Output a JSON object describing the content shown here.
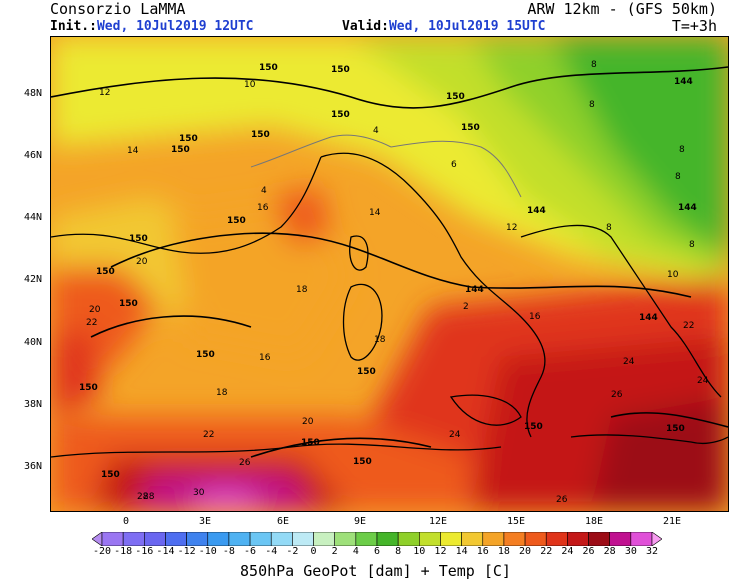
{
  "header": {
    "org": "Consorzio LaMMA",
    "model": "ARW 12km - (GFS 50km)",
    "init_label": "Init.:",
    "init_value": "Wed, 10Jul2019 12UTC",
    "valid_label": "Valid:",
    "valid_value": "Wed, 10Jul2019 15UTC",
    "lead_time": "T=+3h"
  },
  "axes": {
    "latitudes": [
      "48N",
      "46N",
      "44N",
      "42N",
      "40N",
      "38N",
      "36N"
    ],
    "longitudes": [
      "0",
      "3E",
      "6E",
      "9E",
      "12E",
      "15E",
      "18E",
      "21E"
    ]
  },
  "colorbar": {
    "labels": [
      "-20",
      "-18",
      "-16",
      "-14",
      "-12",
      "-10",
      "-8",
      "-6",
      "-4",
      "-2",
      "0",
      "2",
      "4",
      "6",
      "8",
      "10",
      "12",
      "14",
      "16",
      "18",
      "20",
      "22",
      "24",
      "26",
      "28",
      "30",
      "32"
    ],
    "colors": [
      "#b58cf0",
      "#9a76f2",
      "#7e6ef3",
      "#6a66f0",
      "#4e6ef0",
      "#3f82ee",
      "#3a9af0",
      "#4fb2f2",
      "#6bc6f4",
      "#93daf6",
      "#bdeaf5",
      "#c8f0c0",
      "#9ee07a",
      "#6ccd48",
      "#45b52a",
      "#8fd02a",
      "#c2df2c",
      "#ecea30",
      "#f2c832",
      "#f4a428",
      "#f47e22",
      "#ee5a1c",
      "#e0341a",
      "#c41818",
      "#9c0c16",
      "#c01090",
      "#e050d8",
      "#f79cf0"
    ]
  },
  "temperature_labels": [
    "12",
    "14",
    "16",
    "18",
    "20",
    "22",
    "24",
    "26",
    "28",
    "30",
    "10",
    "8",
    "6",
    "4",
    "2",
    "4",
    "12",
    "14",
    "16",
    "18",
    "16",
    "18",
    "20",
    "22",
    "20",
    "22",
    "24",
    "24",
    "26",
    "26",
    "28",
    "8",
    "8",
    "8",
    "8",
    "8",
    "10"
  ],
  "geopot_labels": [
    "150",
    "150",
    "150",
    "150",
    "150",
    "150",
    "150",
    "150",
    "150",
    "150",
    "150",
    "150",
    "150",
    "144",
    "144",
    "144",
    "144",
    "144",
    "150",
    "150",
    "150",
    "150",
    "150",
    "150",
    "150"
  ],
  "footer": "850hPa GeoPot [dam] + Temp [C]"
}
